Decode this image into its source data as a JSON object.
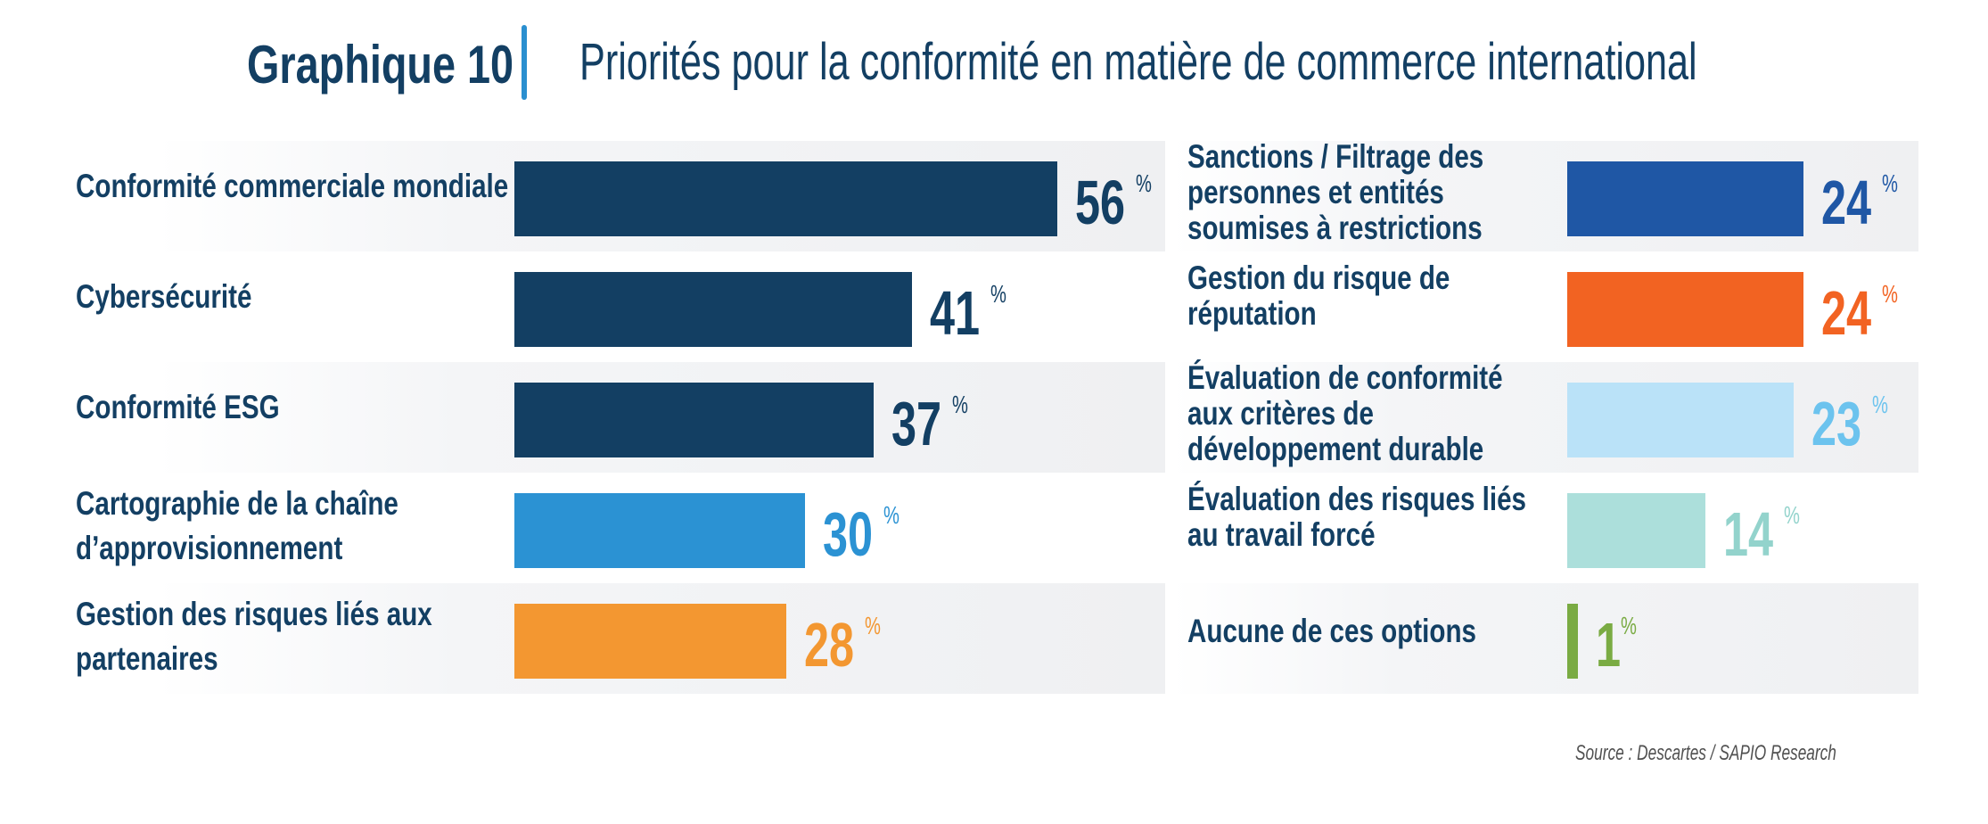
{
  "header": {
    "chart_number": "Graphique 10",
    "title": "Priorités pour la conformité en matière de commerce international"
  },
  "source": "Source : Descartes / SAPIO Research",
  "chart_data": {
    "type": "bar",
    "orientation": "horizontal",
    "title": "Priorités pour la conformité en matière de commerce international",
    "subtitle": "Graphique 10",
    "unit": "%",
    "xlim": [
      0,
      100
    ],
    "grid": false,
    "legend": "none",
    "panels": [
      {
        "name": "left",
        "items": [
          {
            "lines": [
              "Conformité commerciale mondiale"
            ],
            "value": 56,
            "bar_color": "#133f63",
            "text_color": "#133f63",
            "shaded": true
          },
          {
            "lines": [
              "Cybersécurité"
            ],
            "value": 41,
            "bar_color": "#133f63",
            "text_color": "#133f63",
            "shaded": false
          },
          {
            "lines": [
              "Conformité ESG"
            ],
            "value": 37,
            "bar_color": "#133f63",
            "text_color": "#133f63",
            "shaded": true
          },
          {
            "lines": [
              "Cartographie de la chaîne",
              "d’approvisionnement"
            ],
            "value": 30,
            "bar_color": "#2b92d3",
            "text_color": "#2b92d3",
            "shaded": false
          },
          {
            "lines": [
              "Gestion des risques liés aux",
              "partenaires"
            ],
            "value": 28,
            "bar_color": "#f39731",
            "text_color": "#f39731",
            "shaded": true
          }
        ]
      },
      {
        "name": "right",
        "items": [
          {
            "lines": [
              "Sanctions / Filtrage des",
              "personnes et entités",
              "soumises à restrictions"
            ],
            "value": 24,
            "bar_color": "#1f57a5",
            "text_color": "#1f57a5",
            "shaded": true
          },
          {
            "lines": [
              "Gestion du risque de",
              "réputation"
            ],
            "value": 24,
            "bar_color": "#f26322",
            "text_color": "#f26322",
            "shaded": false
          },
          {
            "lines": [
              "Évaluation de conformité",
              "aux critères de",
              "développement durable"
            ],
            "value": 23,
            "bar_color": "#bae2f8",
            "text_color": "#6cc3ee",
            "shaded": true
          },
          {
            "lines": [
              "Évaluation des risques liés",
              "au travail forcé"
            ],
            "value": 14,
            "bar_color": "#acdfdb",
            "text_color": "#93d3cc",
            "shaded": false
          },
          {
            "lines": [
              "Aucune de ces options"
            ],
            "value": 1,
            "bar_color": "#7aab43",
            "text_color": "#7aab43",
            "shaded": true
          }
        ]
      }
    ],
    "value_suffix": "%"
  }
}
